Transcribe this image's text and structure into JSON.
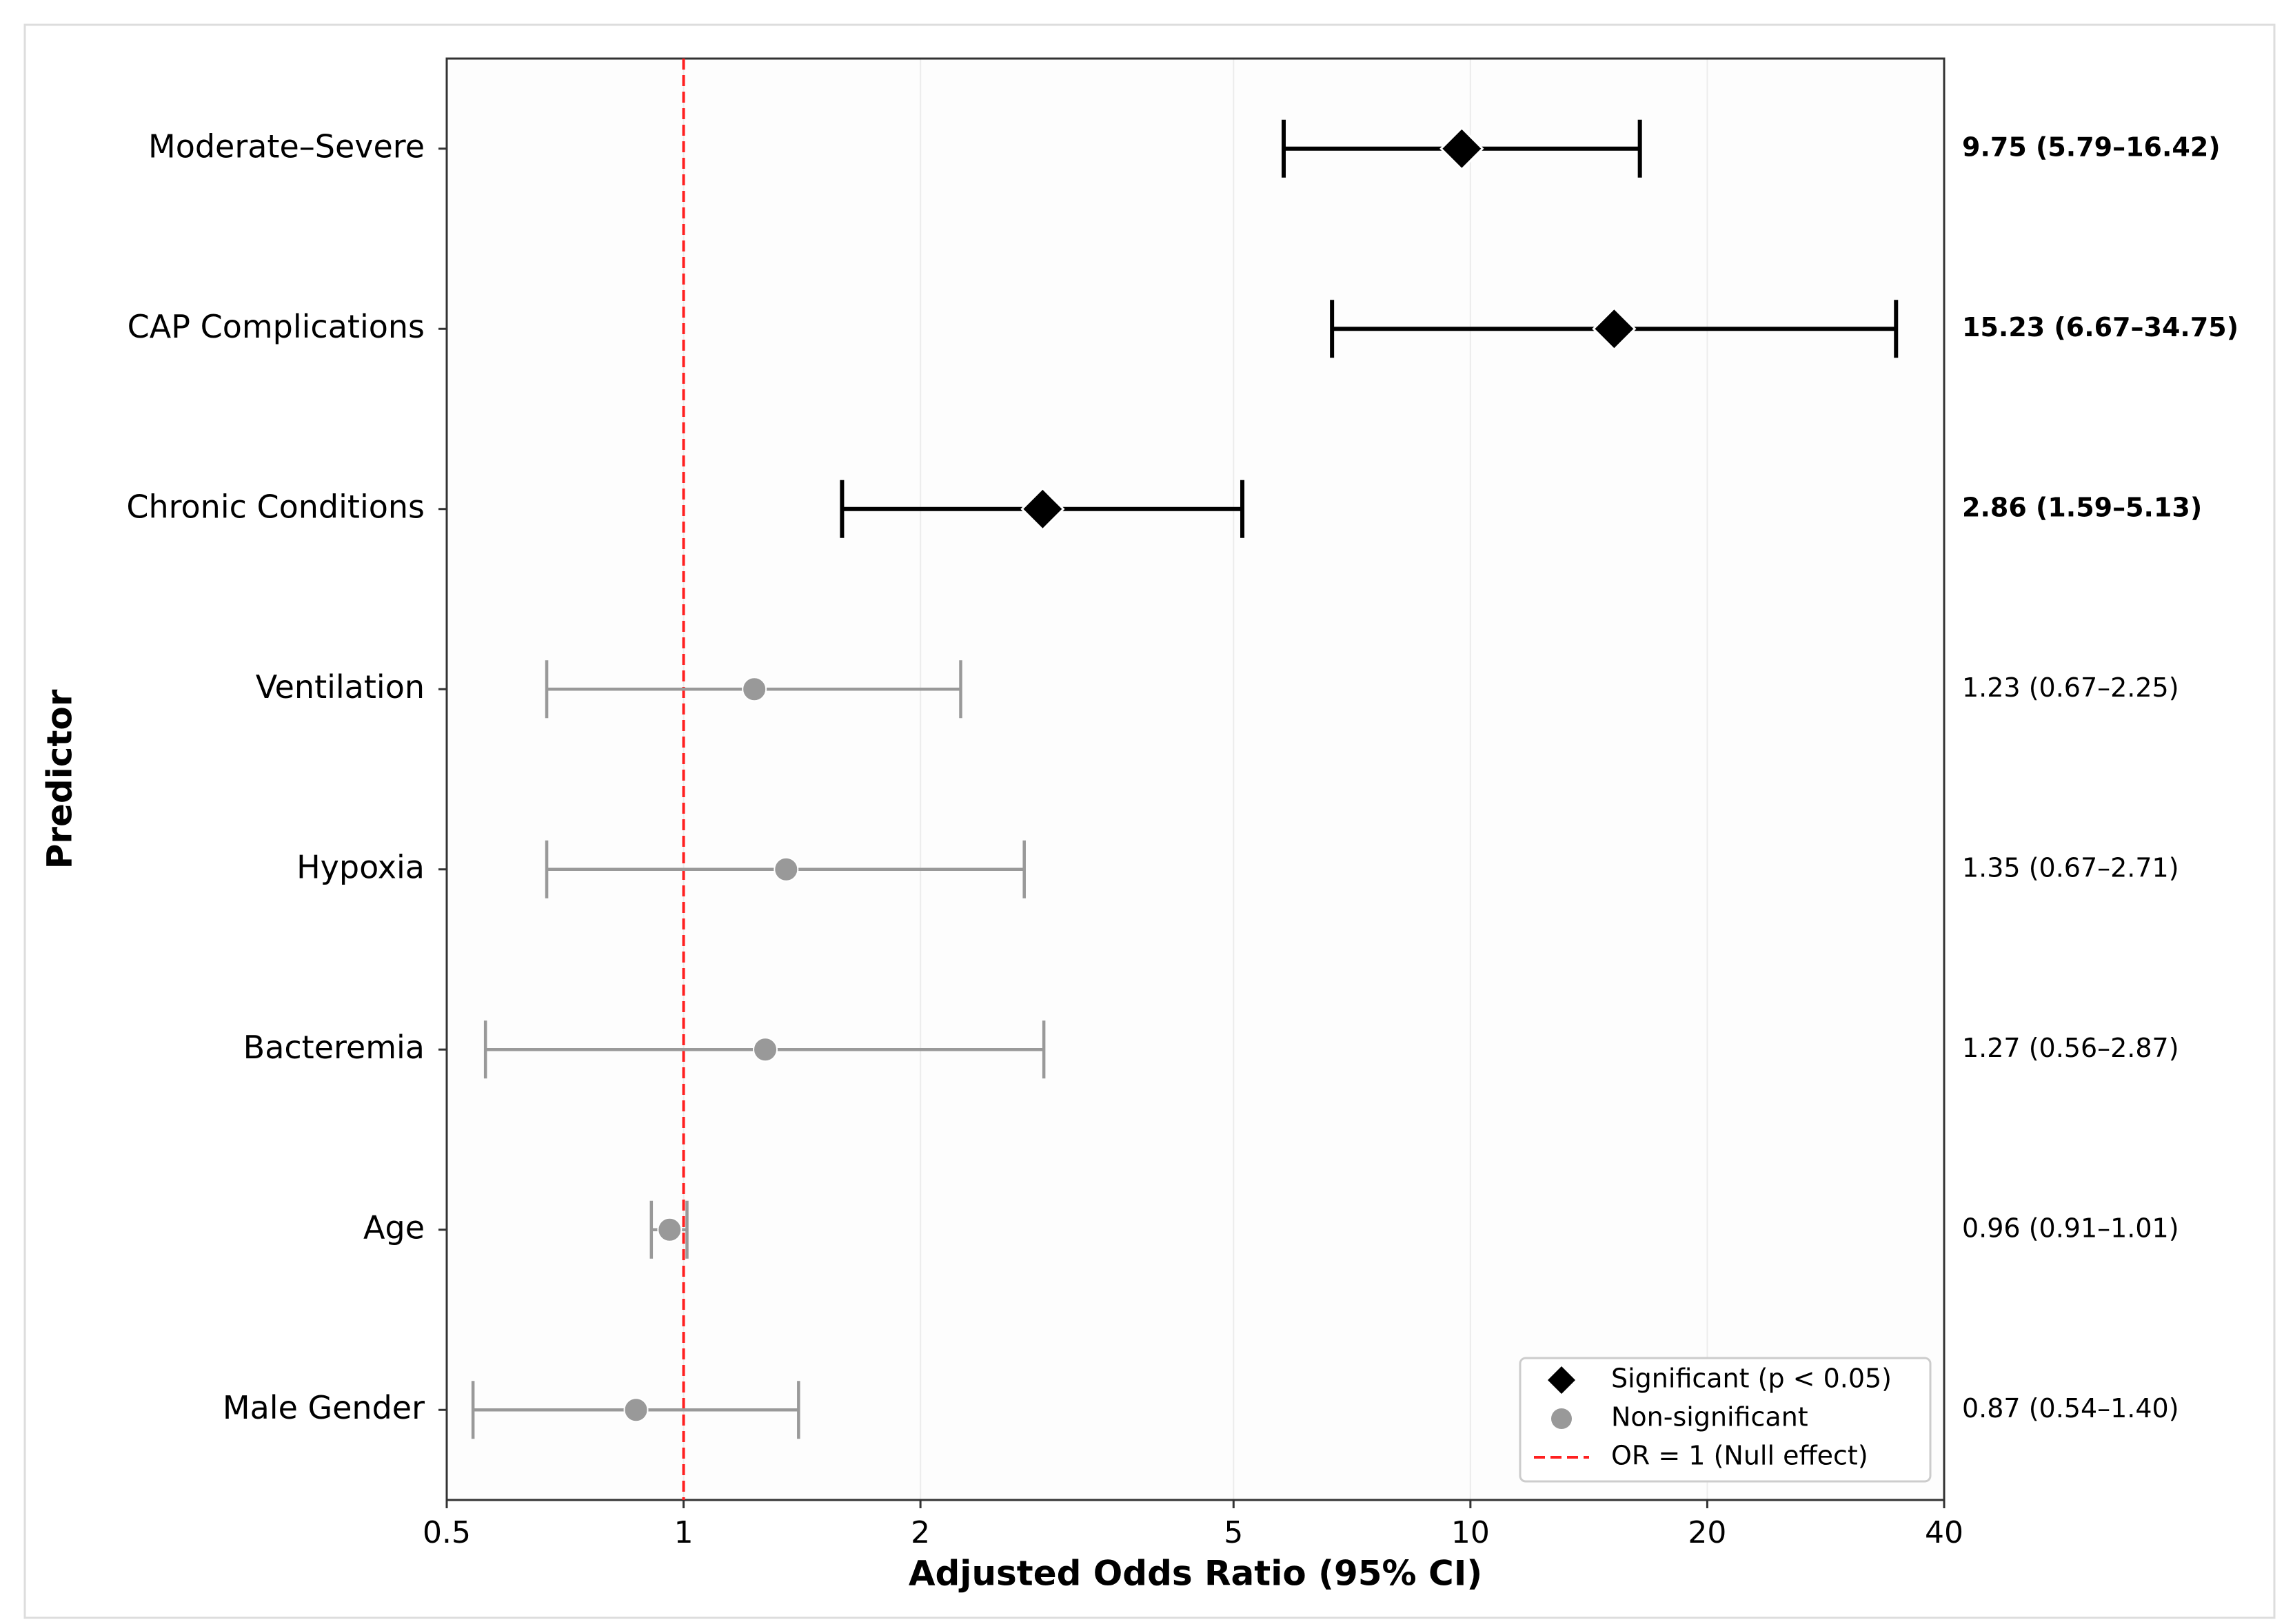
{
  "chart_data": {
    "type": "forest",
    "x_label": "Adjusted Odds Ratio (95% CI)",
    "y_label": "Predictor",
    "categories": [
      "Moderate–Severe",
      "CAP Complications",
      "Chronic Conditions",
      "Ventilation",
      "Hypoxia",
      "Bacteremia",
      "Age",
      "Male Gender"
    ],
    "values": [
      9.75,
      15.23,
      2.86,
      1.23,
      1.35,
      1.27,
      0.96,
      0.87
    ],
    "ci_low": [
      5.79,
      6.67,
      1.59,
      0.67,
      0.67,
      0.56,
      0.91,
      0.54
    ],
    "ci_high": [
      16.42,
      34.75,
      5.13,
      2.25,
      2.71,
      2.87,
      1.01,
      1.4
    ],
    "value_labels": [
      "9.75 (5.79–16.42)",
      "15.23 (6.67–34.75)",
      "2.86 (1.59–5.13)",
      "1.23 (0.67–2.25)",
      "1.35 (0.67–2.71)",
      "1.27 (0.56–2.87)",
      "0.96 (0.91–1.01)",
      "0.87 (0.54–1.40)"
    ],
    "significant": [
      true,
      true,
      true,
      false,
      false,
      false,
      false,
      false
    ],
    "groups": {
      "significant": {
        "name": "Significant (p < 0.05)",
        "color": "#000000",
        "marker": "diamond"
      },
      "nonsignificant": {
        "name": "Non-significant",
        "color": "#999999",
        "marker": "circle"
      }
    },
    "reference_line": {
      "value": 1,
      "name": "OR = 1 (Null effect)",
      "color": "#ff2020"
    },
    "xlim": [
      0.5,
      40
    ],
    "xticks": [
      0.5,
      1,
      2,
      5,
      10,
      20,
      40
    ],
    "xlog": true,
    "grid": true,
    "legend_position": "lower right"
  }
}
